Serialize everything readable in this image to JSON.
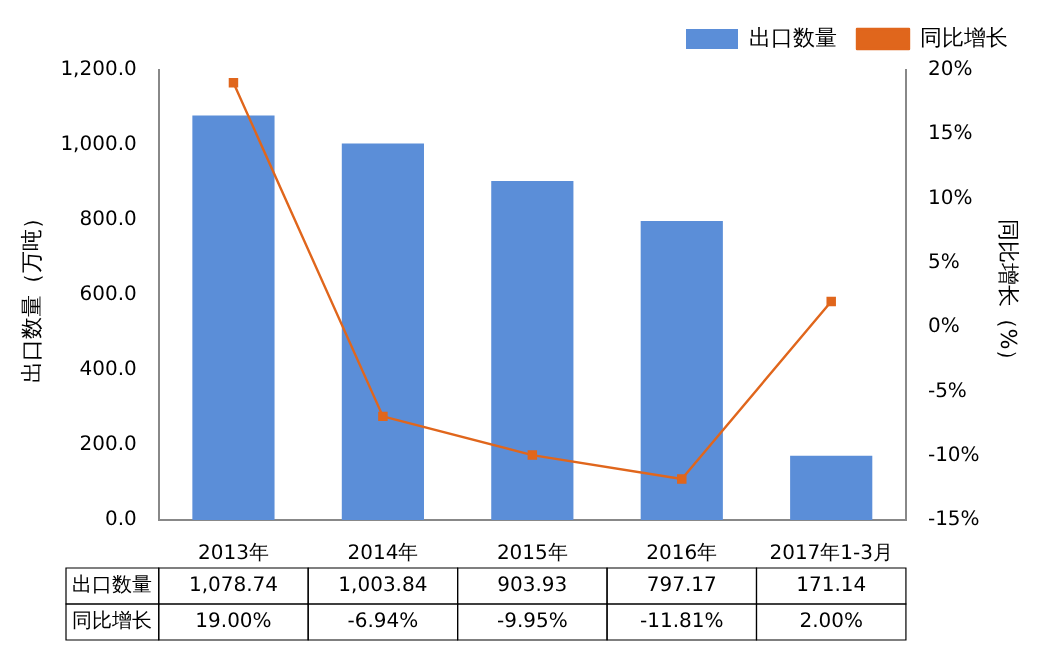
{
  "chart_data": {
    "type": "bar",
    "categories": [
      "2013年",
      "2014年",
      "2015年",
      "2016年",
      "2017年1-3月"
    ],
    "ylabel": "出口数量（万吨）",
    "y2label": "同比增长（%）",
    "series": [
      {
        "name": "出口数量",
        "color": "#5b8ed8",
        "values": [
          1078.74,
          1003.84,
          903.93,
          797.17,
          171.14
        ],
        "value_labels": [
          "1,078.74",
          "1,003.84",
          "903.93",
          "797.17",
          "171.14"
        ]
      },
      {
        "name": "同比增长",
        "type": "line",
        "axis": "y2",
        "color": "#e0661c",
        "marker": "square",
        "line_style": "solid",
        "values": [
          19.0,
          -6.94,
          -9.95,
          -11.81,
          2.0
        ],
        "value_labels": [
          "19.00%",
          "-6.94%",
          "-9.95%",
          "-11.81%",
          "2.00%"
        ]
      }
    ],
    "ylim": [
      0,
      1200
    ],
    "yticks": [
      {
        "value": 0,
        "label": "0.0"
      },
      {
        "value": 200,
        "label": "200.0"
      },
      {
        "value": 400,
        "label": "400.0"
      },
      {
        "value": 600,
        "label": "600.0"
      },
      {
        "value": 800,
        "label": "800.0"
      },
      {
        "value": 1000,
        "label": "1,000.0"
      },
      {
        "value": 1200,
        "label": "1,200.0"
      }
    ],
    "y2lim": [
      -15,
      20
    ],
    "y2ticks": [
      {
        "value": -15,
        "label": "-15%"
      },
      {
        "value": -10,
        "label": "-10%"
      },
      {
        "value": -5,
        "label": "-5%"
      },
      {
        "value": 0,
        "label": "0%"
      },
      {
        "value": 5,
        "label": "5%"
      },
      {
        "value": 10,
        "label": "10%"
      },
      {
        "value": 15,
        "label": "15%"
      },
      {
        "value": 20,
        "label": "20%"
      }
    ],
    "grid": false,
    "legend": "top right"
  }
}
